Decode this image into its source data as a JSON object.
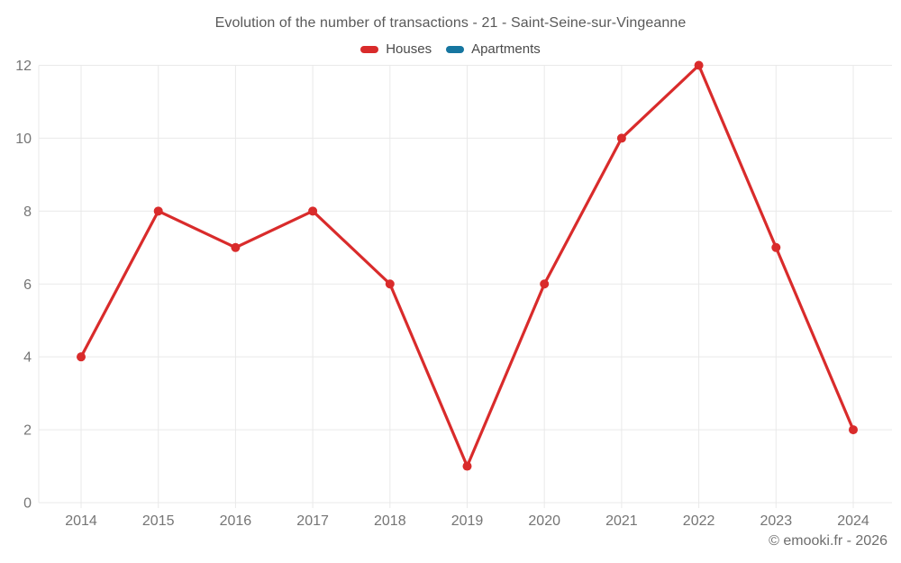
{
  "header": {
    "title": "Evolution of the number of transactions - 21 - Saint-Seine-sur-Vingeanne"
  },
  "footer": {
    "credit": "© emooki.fr - 2026"
  },
  "chart_data": {
    "type": "line",
    "title": "Evolution of the number of transactions - 21 - Saint-Seine-sur-Vingeanne",
    "categories": [
      "2014",
      "2015",
      "2016",
      "2017",
      "2018",
      "2019",
      "2020",
      "2021",
      "2022",
      "2023",
      "2024"
    ],
    "series": [
      {
        "name": "Houses",
        "color": "#d92b2b",
        "values": [
          4,
          8,
          7,
          8,
          6,
          1,
          6,
          10,
          12,
          7,
          2
        ]
      },
      {
        "name": "Apartments",
        "color": "#1676a0",
        "values": []
      }
    ],
    "xlabel": "",
    "ylabel": "",
    "ylim": [
      0,
      12
    ],
    "yticks": [
      0,
      2,
      4,
      6,
      8,
      10,
      12
    ],
    "grid": true,
    "legend_position": "top",
    "point_radius": 5,
    "line_width": 3.2
  }
}
